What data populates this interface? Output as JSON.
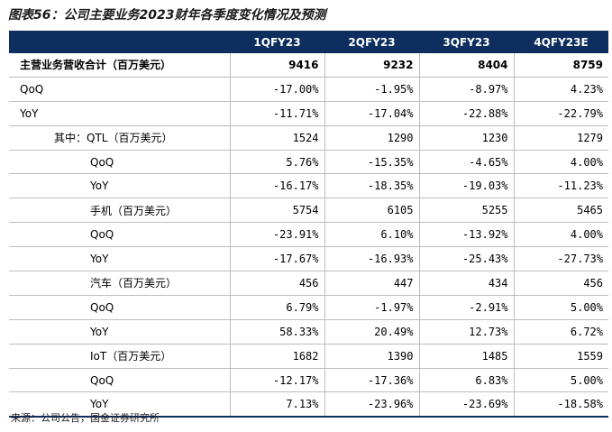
{
  "title": "图表56：公司主要业务2023财年各季度变化情况及预测",
  "table": {
    "corner": "",
    "columns": [
      "1QFY23",
      "2QFY23",
      "3QFY23",
      "4QFY23E"
    ],
    "rows": [
      {
        "label": "主营业务营收合计（百万美元）",
        "indent": 0,
        "bold": true,
        "values": [
          "9416",
          "9232",
          "8404",
          "8759"
        ]
      },
      {
        "label": "QoQ",
        "indent": 0,
        "bold": false,
        "values": [
          "-17.00%",
          "-1.95%",
          "-8.97%",
          "4.23%"
        ]
      },
      {
        "label": "YoY",
        "indent": 0,
        "bold": false,
        "values": [
          "-11.71%",
          "-17.04%",
          "-22.88%",
          "-22.79%"
        ]
      },
      {
        "label": "其中：QTL（百万美元）",
        "indent": 1,
        "bold": false,
        "values": [
          "1524",
          "1290",
          "1230",
          "1279"
        ]
      },
      {
        "label": "QoQ",
        "indent": 2,
        "bold": false,
        "values": [
          "5.76%",
          "-15.35%",
          "-4.65%",
          "4.00%"
        ]
      },
      {
        "label": "YoY",
        "indent": 2,
        "bold": false,
        "values": [
          "-16.17%",
          "-18.35%",
          "-19.03%",
          "-11.23%"
        ]
      },
      {
        "label": "手机（百万美元）",
        "indent": 2,
        "bold": false,
        "values": [
          "5754",
          "6105",
          "5255",
          "5465"
        ]
      },
      {
        "label": "QoQ",
        "indent": 2,
        "bold": false,
        "values": [
          "-23.91%",
          "6.10%",
          "-13.92%",
          "4.00%"
        ]
      },
      {
        "label": "YoY",
        "indent": 2,
        "bold": false,
        "values": [
          "-17.67%",
          "-16.93%",
          "-25.43%",
          "-27.73%"
        ]
      },
      {
        "label": "汽车（百万美元）",
        "indent": 2,
        "bold": false,
        "values": [
          "456",
          "447",
          "434",
          "456"
        ]
      },
      {
        "label": "QoQ",
        "indent": 2,
        "bold": false,
        "values": [
          "6.79%",
          "-1.97%",
          "-2.91%",
          "5.00%"
        ]
      },
      {
        "label": "YoY",
        "indent": 2,
        "bold": false,
        "values": [
          "58.33%",
          "20.49%",
          "12.73%",
          "6.72%"
        ]
      },
      {
        "label": "IoT（百万美元）",
        "indent": 2,
        "bold": false,
        "values": [
          "1682",
          "1390",
          "1485",
          "1559"
        ]
      },
      {
        "label": "QoQ",
        "indent": 2,
        "bold": false,
        "values": [
          "-12.17%",
          "-17.36%",
          "6.83%",
          "5.00%"
        ]
      },
      {
        "label": "YoY",
        "indent": 2,
        "bold": false,
        "values": [
          "7.13%",
          "-23.96%",
          "-23.69%",
          "-18.58%"
        ]
      }
    ]
  },
  "source": "来源：公司公告，国金证券研究所"
}
